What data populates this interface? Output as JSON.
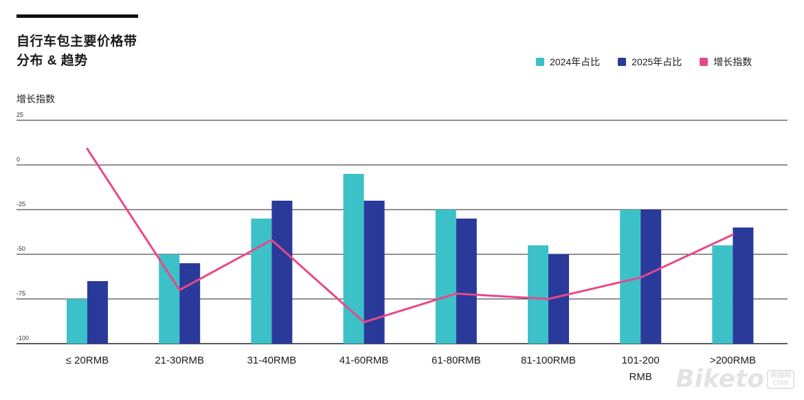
{
  "header": {
    "title_line1": "自行车包主要价格带",
    "title_line2": "分布 & 趋势"
  },
  "legend": [
    {
      "label": "2024年占比",
      "color": "#3cc1c8"
    },
    {
      "label": "2025年占比",
      "color": "#2a3a9a"
    },
    {
      "label": "增长指数",
      "color": "#e8488a"
    }
  ],
  "y_axis_label": "增长指数",
  "chart_data": {
    "type": "bar",
    "title": "自行车包主要价格带分布 & 趋势",
    "ylabel": "增长指数",
    "ylim": [
      -100,
      25
    ],
    "yticks": [
      "25",
      "0",
      "-25",
      "-50",
      "-75",
      "-100"
    ],
    "categories": [
      "≤ 20RMB",
      "21-30RMB",
      "31-40RMB",
      "41-60RMB",
      "61-80RMB",
      "81-100RMB",
      "101-200\nRMB",
      ">200RMB"
    ],
    "series": [
      {
        "name": "2024年占比",
        "type": "bar",
        "color": "#3cc1c8",
        "values": [
          -75,
          -50,
          -30,
          -5,
          -25,
          -45,
          -25,
          -45
        ]
      },
      {
        "name": "2025年占比",
        "type": "bar",
        "color": "#2a3a9a",
        "values": [
          -65,
          -55,
          -20,
          -20,
          -30,
          -50,
          -25,
          -35
        ]
      },
      {
        "name": "增长指数",
        "type": "line",
        "color": "#e8488a",
        "values": [
          9,
          -70,
          -42,
          -88,
          -72,
          -75,
          -63,
          -39
        ]
      }
    ]
  },
  "watermark": {
    "brand": "Biketo",
    "badge_top": "美骑网",
    "badge_bottom": "COM"
  }
}
